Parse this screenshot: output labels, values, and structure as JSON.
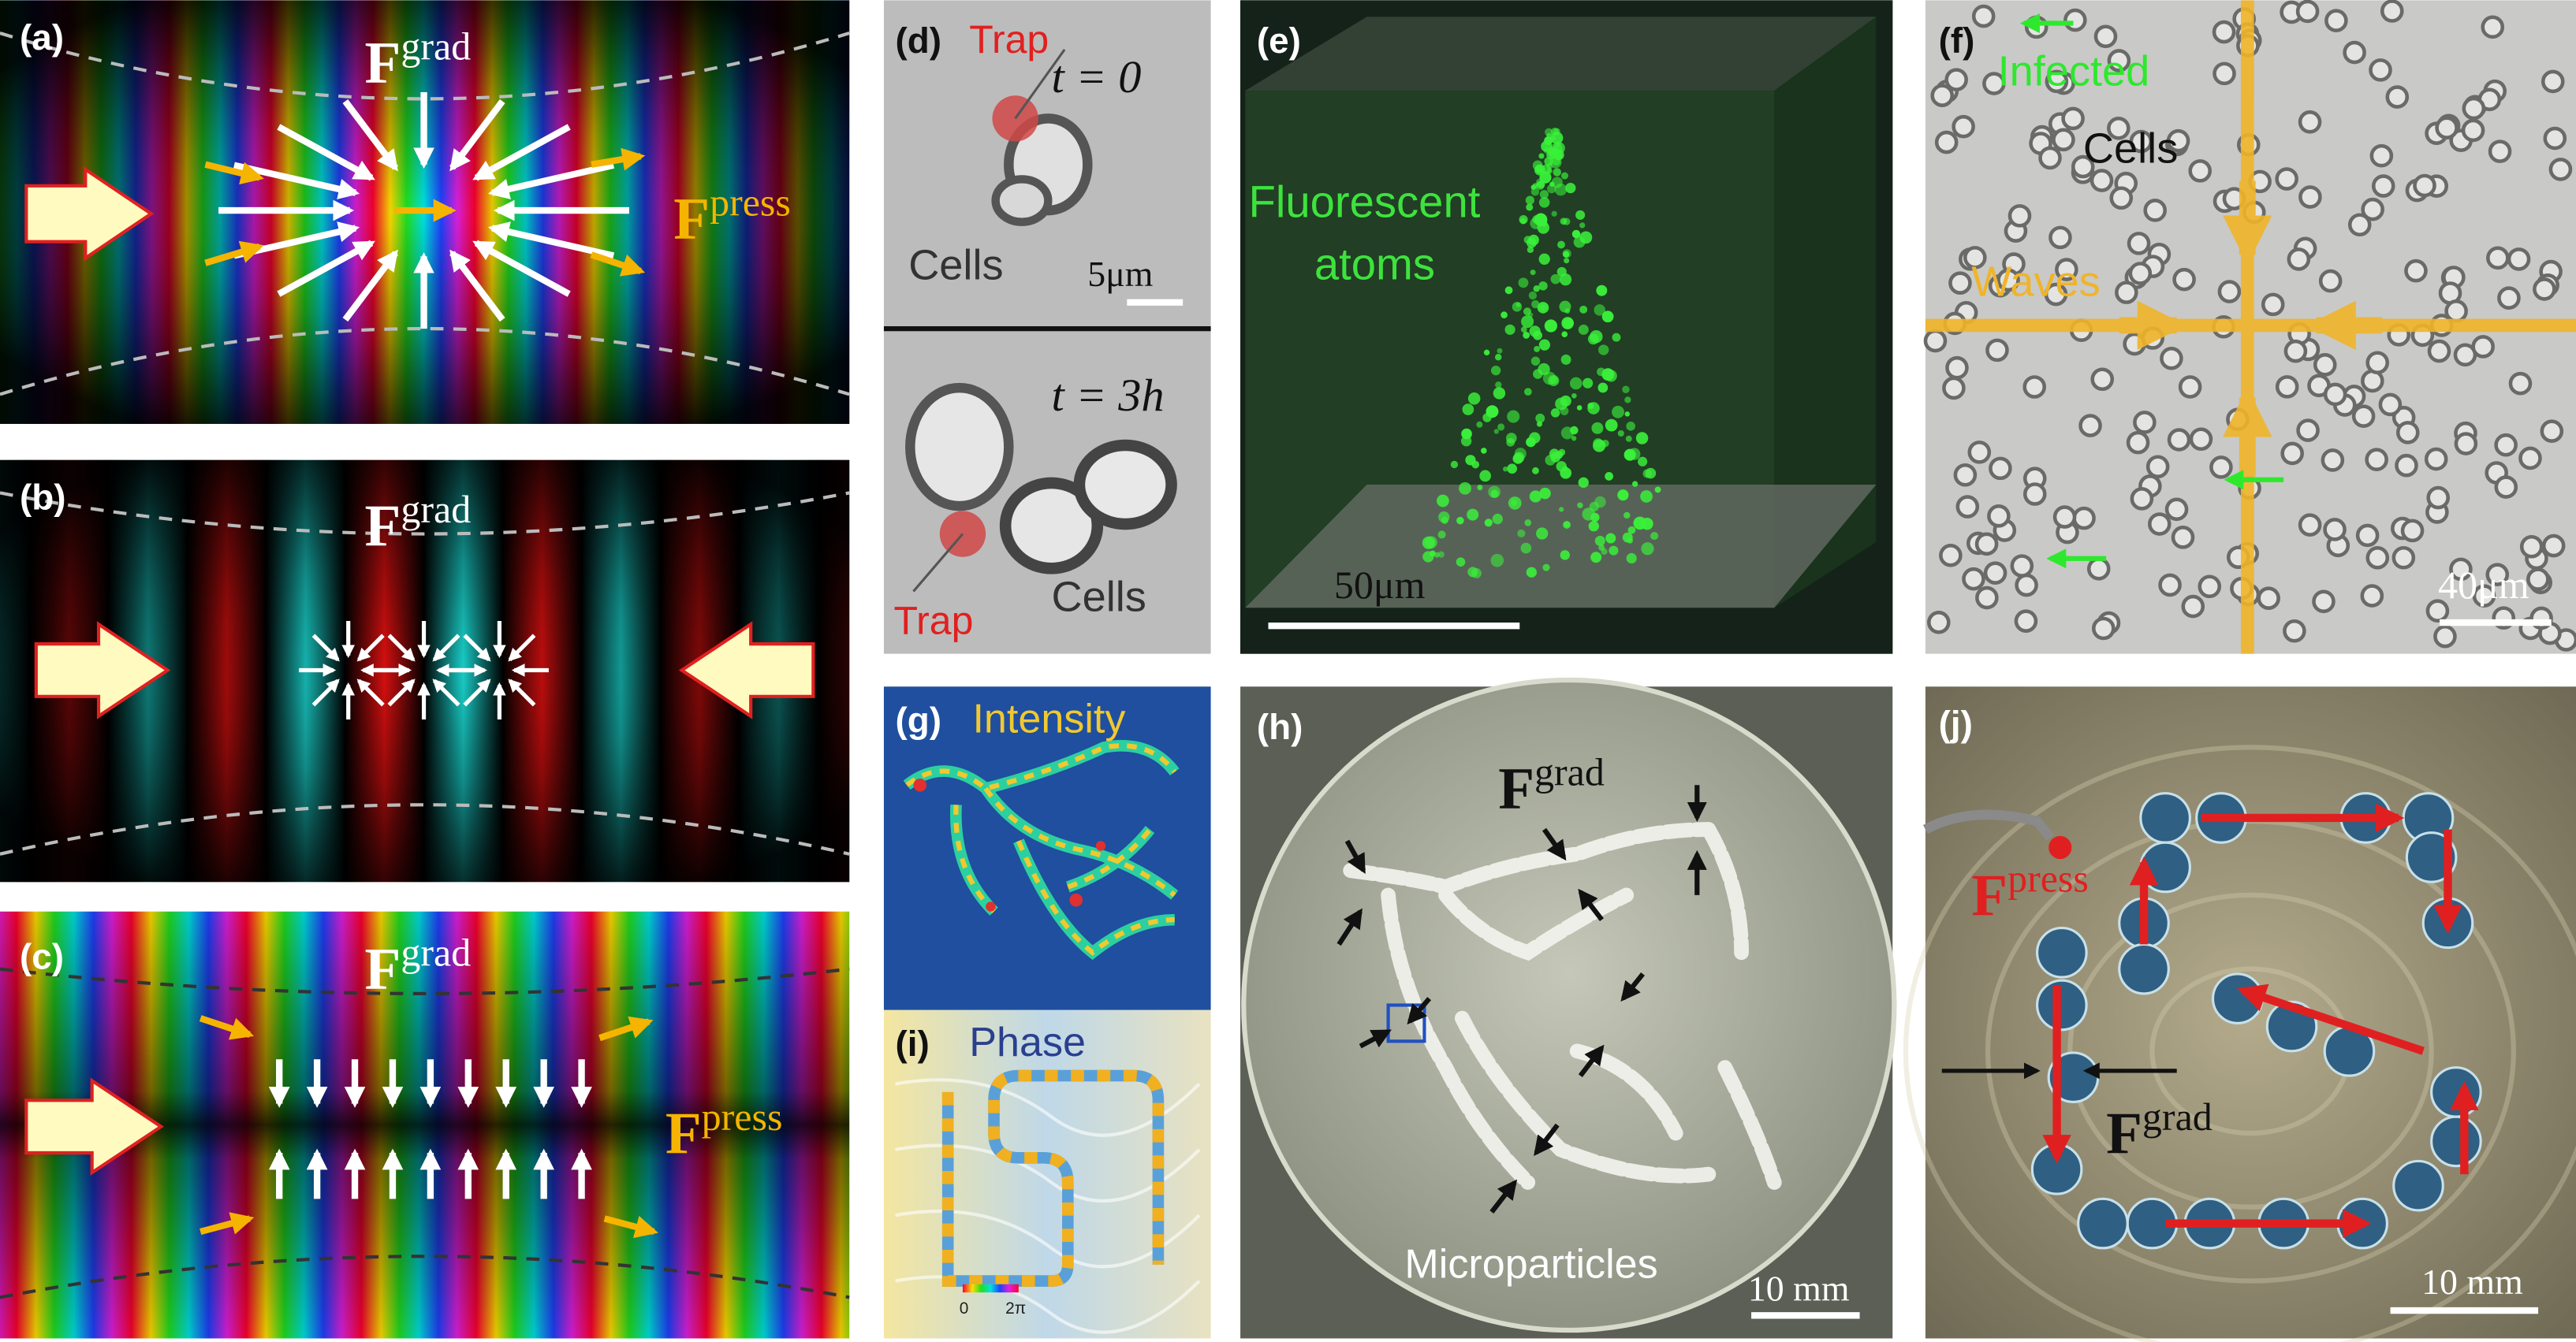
{
  "panels": [
    {
      "label": "(a)",
      "texts": [
        "F",
        "grad",
        "F",
        "press"
      ]
    },
    {
      "label": "(b)",
      "texts": [
        "F",
        "grad"
      ]
    },
    {
      "label": "(c)",
      "texts": [
        "F",
        "grad",
        "F",
        "press"
      ]
    },
    {
      "label": "(d)",
      "texts": [
        "Trap",
        "t = 0",
        "Cells",
        "5μm",
        "t = 3h",
        "Cells",
        "Trap"
      ]
    },
    {
      "label": "(e)",
      "texts": [
        "Fluorescent",
        "atoms",
        "50μm"
      ]
    },
    {
      "label": "(f)",
      "texts": [
        "Infected",
        "Cells",
        "Waves",
        "40μm"
      ]
    },
    {
      "label": "(g)",
      "texts": [
        "Intensity"
      ]
    },
    {
      "label": "(i)",
      "texts": [
        "Phase",
        "0",
        "2π"
      ]
    },
    {
      "label": "(h)",
      "texts": [
        "F",
        "grad",
        "Microparticles",
        "10 mm"
      ]
    },
    {
      "label": "(j)",
      "texts": [
        "F",
        "press",
        "F",
        "grad",
        "10 mm"
      ]
    }
  ]
}
